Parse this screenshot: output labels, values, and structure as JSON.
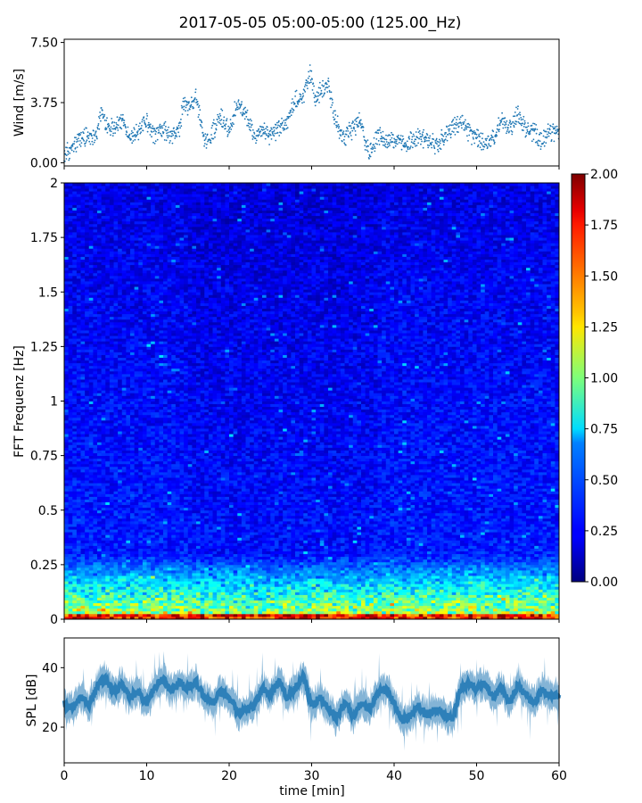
{
  "title": "2017-05-05 05:00-05:00 (125.00_Hz)",
  "chart_data": [
    {
      "type": "scatter",
      "panel": "wind",
      "ylabel": "Wind [m/s]",
      "yticks": [
        "0.00",
        "3.75",
        "7.50"
      ],
      "ylim": [
        -0.2,
        7.7
      ],
      "xlim": [
        0,
        60
      ],
      "color": "#1f77b4",
      "anchors": [
        [
          0,
          0.4
        ],
        [
          1,
          0.9
        ],
        [
          2,
          1.5
        ],
        [
          3,
          1.6
        ],
        [
          4,
          2.0
        ],
        [
          4.5,
          3.2
        ],
        [
          5,
          2.4
        ],
        [
          6,
          2.2
        ],
        [
          7,
          2.6
        ],
        [
          8,
          1.6
        ],
        [
          9,
          2.0
        ],
        [
          10,
          2.6
        ],
        [
          11,
          1.7
        ],
        [
          12,
          2.0
        ],
        [
          13,
          1.6
        ],
        [
          14,
          2.2
        ],
        [
          14.5,
          3.7
        ],
        [
          15,
          3.4
        ],
        [
          16,
          4.1
        ],
        [
          16.5,
          2.8
        ],
        [
          17,
          1.0
        ],
        [
          18,
          2.0
        ],
        [
          19,
          2.8
        ],
        [
          20,
          2.0
        ],
        [
          21,
          3.8
        ],
        [
          22,
          3.1
        ],
        [
          23,
          1.8
        ],
        [
          24,
          2.1
        ],
        [
          25,
          1.7
        ],
        [
          26,
          2.2
        ],
        [
          27,
          2.5
        ],
        [
          28,
          3.9
        ],
        [
          29,
          4.2
        ],
        [
          29.8,
          5.6
        ],
        [
          30.5,
          3.8
        ],
        [
          31,
          4.4
        ],
        [
          32,
          4.8
        ],
        [
          33,
          2.4
        ],
        [
          34,
          1.5
        ],
        [
          35,
          2.2
        ],
        [
          36,
          2.6
        ],
        [
          36.5,
          1.4
        ],
        [
          37,
          0.6
        ],
        [
          38,
          1.8
        ],
        [
          39,
          1.4
        ],
        [
          40,
          1.4
        ],
        [
          41,
          1.1
        ],
        [
          42,
          1.3
        ],
        [
          43,
          1.6
        ],
        [
          44,
          1.4
        ],
        [
          45,
          1.2
        ],
        [
          46,
          1.5
        ],
        [
          47,
          2.1
        ],
        [
          48,
          2.6
        ],
        [
          49,
          2.0
        ],
        [
          50,
          1.6
        ],
        [
          51,
          1.1
        ],
        [
          52,
          1.4
        ],
        [
          53,
          2.7
        ],
        [
          54,
          2.2
        ],
        [
          55,
          3.0
        ],
        [
          56,
          2.1
        ],
        [
          57,
          2.0
        ],
        [
          58,
          1.4
        ],
        [
          59,
          2.0
        ],
        [
          60,
          1.9
        ]
      ]
    },
    {
      "type": "heatmap",
      "panel": "spectrogram",
      "ylabel": "FFT Frequenz [Hz]",
      "yticks": [
        "0",
        "0.25",
        "0.5",
        "0.75",
        "1",
        "1.25",
        "1.5",
        "1.75",
        "2"
      ],
      "ylim": [
        0,
        2
      ],
      "xlim": [
        0,
        60
      ],
      "colormap": "jet",
      "colorbar": {
        "ticks": [
          "0.00",
          "0.25",
          "0.50",
          "0.75",
          "1.00",
          "1.25",
          "1.50",
          "1.75",
          "2.00"
        ],
        "range": [
          0,
          2
        ]
      }
    },
    {
      "type": "area",
      "panel": "spl",
      "ylabel": "SPL [dB]",
      "yticks": [
        "20",
        "40"
      ],
      "ylim": [
        8,
        50
      ],
      "xlim": [
        0,
        60
      ],
      "xlabel": "time [min]",
      "xticks": [
        "0",
        "10",
        "20",
        "30",
        "40",
        "50",
        "60"
      ],
      "color": "#1f77b4",
      "anchors": [
        [
          0,
          28
        ],
        [
          1,
          26
        ],
        [
          2,
          30
        ],
        [
          3,
          27
        ],
        [
          4,
          34
        ],
        [
          5,
          36
        ],
        [
          6,
          32
        ],
        [
          7,
          34
        ],
        [
          8,
          30
        ],
        [
          9,
          32
        ],
        [
          10,
          28
        ],
        [
          11,
          34
        ],
        [
          12,
          36
        ],
        [
          13,
          32
        ],
        [
          14,
          35
        ],
        [
          15,
          33
        ],
        [
          16,
          35
        ],
        [
          17,
          30
        ],
        [
          18,
          28
        ],
        [
          19,
          32
        ],
        [
          20,
          30
        ],
        [
          21,
          25
        ],
        [
          22,
          26
        ],
        [
          23,
          27
        ],
        [
          24,
          33
        ],
        [
          25,
          31
        ],
        [
          26,
          35
        ],
        [
          27,
          30
        ],
        [
          28,
          33
        ],
        [
          29,
          37
        ],
        [
          30,
          27
        ],
        [
          31,
          30
        ],
        [
          32,
          26
        ],
        [
          33,
          23
        ],
        [
          34,
          28
        ],
        [
          35,
          24
        ],
        [
          36,
          28
        ],
        [
          37,
          26
        ],
        [
          38,
          31
        ],
        [
          39,
          33
        ],
        [
          40,
          28
        ],
        [
          41,
          22
        ],
        [
          42,
          24
        ],
        [
          43,
          27
        ],
        [
          44,
          24
        ],
        [
          45,
          26
        ],
        [
          46,
          25
        ],
        [
          47,
          22
        ],
        [
          48,
          32
        ],
        [
          49,
          35
        ],
        [
          50,
          33
        ],
        [
          51,
          35
        ],
        [
          52,
          30
        ],
        [
          53,
          33
        ],
        [
          54,
          28
        ],
        [
          55,
          34
        ],
        [
          56,
          31
        ],
        [
          57,
          28
        ],
        [
          58,
          33
        ],
        [
          59,
          30
        ],
        [
          60,
          31
        ]
      ]
    }
  ]
}
